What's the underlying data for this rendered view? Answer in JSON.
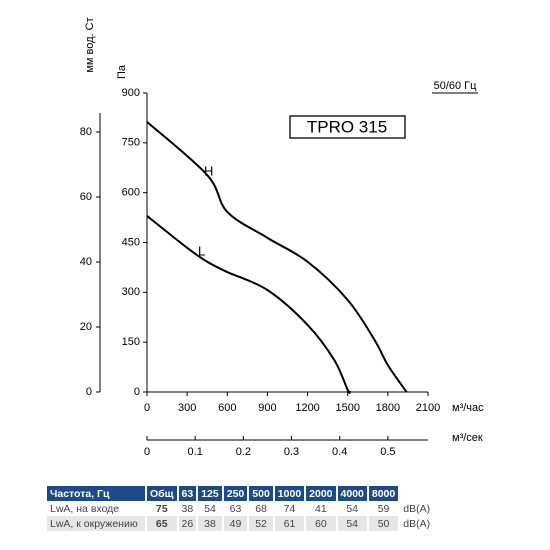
{
  "chart_data": {
    "type": "line",
    "title": "TPRO 315",
    "subtitle": "50/60 Гц",
    "xlabel": "м³/час",
    "x2label": "м³/сек",
    "ylabel": "Па",
    "y2label": "мм вод. Ст",
    "xlim": [
      0,
      2100
    ],
    "xticks": [
      0,
      300,
      600,
      900,
      1200,
      1500,
      1800,
      2100
    ],
    "x2lim": [
      0,
      0.5833
    ],
    "x2ticks": [
      0,
      0.1,
      0.2,
      0.3,
      0.4,
      0.5
    ],
    "ylim": [
      0,
      900
    ],
    "yticks": [
      0,
      150,
      300,
      450,
      600,
      750,
      900
    ],
    "y2lim": [
      0,
      92
    ],
    "y2ticks": [
      0,
      20,
      40,
      60,
      80
    ],
    "grid": false,
    "series": [
      {
        "name": "H",
        "color": "#000000",
        "x": [
          0,
          450,
          600,
          900,
          1200,
          1500,
          1700,
          1800,
          1940
        ],
        "values": [
          813,
          653,
          542,
          464,
          392,
          277,
          157,
          81,
          0
        ]
      },
      {
        "name": "L",
        "color": "#000000",
        "x": [
          0,
          300,
          450,
          600,
          900,
          1200,
          1400,
          1500,
          1520
        ],
        "values": [
          530,
          434,
          392,
          361,
          307,
          202,
          96,
          6,
          0
        ]
      }
    ]
  },
  "table": {
    "header": [
      "Частота, Гц",
      "Общ",
      "63",
      "125",
      "250",
      "500",
      "1000",
      "2000",
      "4000",
      "8000"
    ],
    "rows": [
      [
        "LwA, на входе",
        "75",
        "38",
        "54",
        "63",
        "68",
        "74",
        "41",
        "54",
        "59",
        "dB(A)"
      ],
      [
        "LwA, к окружению",
        "65",
        "26",
        "38",
        "49",
        "52",
        "61",
        "60",
        "54",
        "50",
        "dB(A)"
      ]
    ]
  }
}
